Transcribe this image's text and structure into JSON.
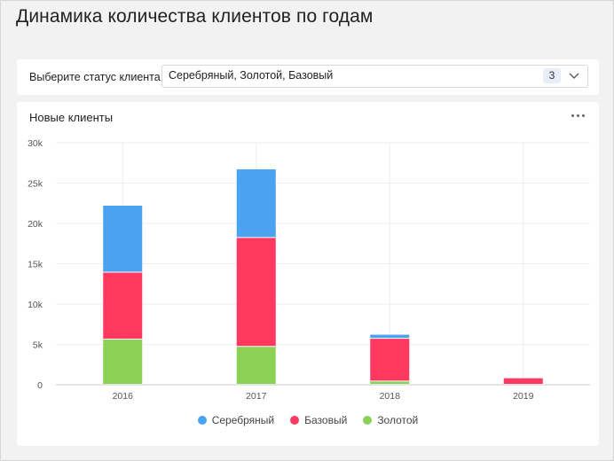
{
  "page": {
    "title": "Динамика количества клиентов по годам"
  },
  "filter": {
    "label": "Выберите статус клиента",
    "value": "Серебряный, Золотой, Базовый",
    "count": "3"
  },
  "chart_card": {
    "title": "Новые клиенты"
  },
  "colors": {
    "silver": "#4aa3f0",
    "basic": "#ff3860",
    "gold": "#8bd155"
  },
  "chart_data": {
    "type": "bar",
    "stacked": true,
    "title": "Новые клиенты",
    "categories": [
      "2016",
      "2017",
      "2018",
      "2019"
    ],
    "series": [
      {
        "name": "Золотой",
        "color": "#8bd155",
        "values": [
          5600,
          4700,
          400,
          0
        ]
      },
      {
        "name": "Базовый",
        "color": "#ff3860",
        "values": [
          8300,
          13500,
          5300,
          800
        ]
      },
      {
        "name": "Серебряный",
        "color": "#4aa3f0",
        "values": [
          8300,
          8500,
          500,
          0
        ]
      }
    ],
    "legend_order": [
      "Серебряный",
      "Базовый",
      "Золотой"
    ],
    "ylim": [
      0,
      30000
    ],
    "yticks": [
      0,
      5000,
      10000,
      15000,
      20000,
      25000,
      30000
    ],
    "ytick_labels": [
      "0",
      "5k",
      "10k",
      "15k",
      "20k",
      "25k",
      "30k"
    ],
    "grid": true,
    "legend_position": "bottom"
  }
}
